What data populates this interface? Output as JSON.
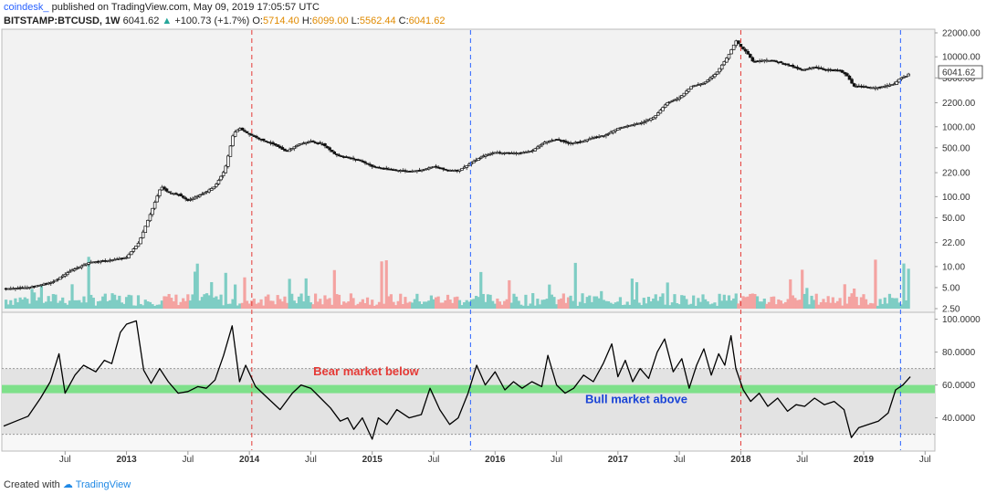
{
  "header": {
    "author": "coindesk_",
    "published": "published on TradingView.com, May 09, 2019 17:05:57 UTC",
    "symbol": "BITSTAMP:BTCUSD, 1W",
    "last": "6041.62",
    "change": "+100.73 (+1.7%)",
    "o_label": "O:",
    "o_value": "5714.40",
    "h_label": "H:",
    "h_value": "6099.00",
    "l_label": "L:",
    "l_value": "5562.44",
    "c_label": "C:",
    "c_value": "6041.62"
  },
  "footer": {
    "created_with": "Created with",
    "brand": "TradingView"
  },
  "colors": {
    "up": "#26a69a",
    "down": "#ef5350",
    "vol_up": "#7ecdc4",
    "vol_down": "#f4a3a1",
    "bear_line": "#e53935",
    "bull_line": "#2962ff",
    "band": "#7ee08a",
    "zone": "#e3e3e3",
    "bear_text": "#e53935",
    "bull_text": "#1a44d6"
  },
  "chart_data": [
    {
      "type": "candlestick",
      "title": "BITSTAMP:BTCUSD, 1W",
      "y_scale": "log",
      "y_ticks": [
        "2.50",
        "5.00",
        "10.00",
        "22.00",
        "50.00",
        "100.00",
        "220.00",
        "500.00",
        "1000.00",
        "2200.00",
        "5000.00",
        "10000.00",
        "22000.00"
      ],
      "y_tick_values": [
        2.5,
        5,
        10,
        22,
        50,
        100,
        220,
        500,
        1000,
        2200,
        5000,
        10000,
        22000
      ],
      "last_price_label": "6041.62",
      "last_price": 6041.62,
      "x_ticks": [
        "Jul",
        "2013",
        "Jul",
        "2014",
        "Jul",
        "2015",
        "Jul",
        "2016",
        "Jul",
        "2017",
        "Jul",
        "2018",
        "Jul",
        "2019",
        "Jul"
      ],
      "x_tick_bold": [
        false,
        true,
        false,
        true,
        false,
        true,
        false,
        true,
        false,
        true,
        false,
        true,
        false,
        true,
        false
      ],
      "x_tick_dates": [
        2012.5,
        2013.0,
        2013.5,
        2014.0,
        2014.5,
        2015.0,
        2015.5,
        2016.0,
        2016.5,
        2017.0,
        2017.5,
        2018.0,
        2018.5,
        2019.0,
        2019.5
      ],
      "x_range": [
        2012.0,
        2019.55
      ],
      "price_path": [
        {
          "t": 2012.0,
          "p": 4.8
        },
        {
          "t": 2012.2,
          "p": 5.0
        },
        {
          "t": 2012.4,
          "p": 6.0
        },
        {
          "t": 2012.55,
          "p": 8.8
        },
        {
          "t": 2012.7,
          "p": 11.5
        },
        {
          "t": 2012.85,
          "p": 12.2
        },
        {
          "t": 2013.0,
          "p": 13.5
        },
        {
          "t": 2013.1,
          "p": 22
        },
        {
          "t": 2013.2,
          "p": 60
        },
        {
          "t": 2013.28,
          "p": 140
        },
        {
          "t": 2013.34,
          "p": 115
        },
        {
          "t": 2013.42,
          "p": 108
        },
        {
          "t": 2013.5,
          "p": 88
        },
        {
          "t": 2013.62,
          "p": 110
        },
        {
          "t": 2013.72,
          "p": 140
        },
        {
          "t": 2013.8,
          "p": 240
        },
        {
          "t": 2013.87,
          "p": 800
        },
        {
          "t": 2013.92,
          "p": 950
        },
        {
          "t": 2014.0,
          "p": 780
        },
        {
          "t": 2014.1,
          "p": 650
        },
        {
          "t": 2014.2,
          "p": 560
        },
        {
          "t": 2014.3,
          "p": 440
        },
        {
          "t": 2014.4,
          "p": 560
        },
        {
          "t": 2014.5,
          "p": 620
        },
        {
          "t": 2014.6,
          "p": 560
        },
        {
          "t": 2014.7,
          "p": 400
        },
        {
          "t": 2014.8,
          "p": 360
        },
        {
          "t": 2014.9,
          "p": 330
        },
        {
          "t": 2015.0,
          "p": 270
        },
        {
          "t": 2015.1,
          "p": 250
        },
        {
          "t": 2015.2,
          "p": 240
        },
        {
          "t": 2015.3,
          "p": 230
        },
        {
          "t": 2015.4,
          "p": 240
        },
        {
          "t": 2015.5,
          "p": 270
        },
        {
          "t": 2015.6,
          "p": 240
        },
        {
          "t": 2015.7,
          "p": 235
        },
        {
          "t": 2015.8,
          "p": 300
        },
        {
          "t": 2015.9,
          "p": 380
        },
        {
          "t": 2016.0,
          "p": 430
        },
        {
          "t": 2016.1,
          "p": 420
        },
        {
          "t": 2016.2,
          "p": 420
        },
        {
          "t": 2016.3,
          "p": 450
        },
        {
          "t": 2016.4,
          "p": 600
        },
        {
          "t": 2016.5,
          "p": 660
        },
        {
          "t": 2016.6,
          "p": 580
        },
        {
          "t": 2016.7,
          "p": 610
        },
        {
          "t": 2016.8,
          "p": 700
        },
        {
          "t": 2016.9,
          "p": 760
        },
        {
          "t": 2017.0,
          "p": 950
        },
        {
          "t": 2017.1,
          "p": 1050
        },
        {
          "t": 2017.2,
          "p": 1150
        },
        {
          "t": 2017.3,
          "p": 1400
        },
        {
          "t": 2017.4,
          "p": 2200
        },
        {
          "t": 2017.5,
          "p": 2600
        },
        {
          "t": 2017.6,
          "p": 3800
        },
        {
          "t": 2017.7,
          "p": 4200
        },
        {
          "t": 2017.8,
          "p": 5800
        },
        {
          "t": 2017.9,
          "p": 10500
        },
        {
          "t": 2017.96,
          "p": 17000
        },
        {
          "t": 2018.0,
          "p": 14000
        },
        {
          "t": 2018.05,
          "p": 11500
        },
        {
          "t": 2018.1,
          "p": 8500
        },
        {
          "t": 2018.2,
          "p": 9000
        },
        {
          "t": 2018.3,
          "p": 8500
        },
        {
          "t": 2018.4,
          "p": 7500
        },
        {
          "t": 2018.5,
          "p": 6400
        },
        {
          "t": 2018.6,
          "p": 7200
        },
        {
          "t": 2018.7,
          "p": 6500
        },
        {
          "t": 2018.8,
          "p": 6400
        },
        {
          "t": 2018.86,
          "p": 5500
        },
        {
          "t": 2018.92,
          "p": 3800
        },
        {
          "t": 2019.0,
          "p": 3700
        },
        {
          "t": 2019.1,
          "p": 3600
        },
        {
          "t": 2019.2,
          "p": 3900
        },
        {
          "t": 2019.25,
          "p": 4100
        },
        {
          "t": 2019.3,
          "p": 5000
        },
        {
          "t": 2019.35,
          "p": 5300
        },
        {
          "t": 2019.38,
          "p": 6041.62
        }
      ],
      "markers": [
        {
          "t": 2014.02,
          "kind": "bear"
        },
        {
          "t": 2015.8,
          "kind": "bull"
        },
        {
          "t": 2018.0,
          "kind": "bear"
        },
        {
          "t": 2019.3,
          "kind": "bull"
        }
      ]
    },
    {
      "type": "line",
      "title": "",
      "y_ticks": [
        "40.0000",
        "60.0000",
        "80.0000",
        "100.0000"
      ],
      "y_tick_values": [
        40,
        60,
        80,
        100
      ],
      "ylim": [
        22,
        102
      ],
      "upper_level": 70,
      "lower_level": 30,
      "band": [
        55,
        60
      ],
      "annotations": [
        {
          "text": "Bear market below",
          "t": 2014.95,
          "v": 66,
          "color_key": "bear_text"
        },
        {
          "text": "Bull market above",
          "t": 2017.15,
          "v": 49,
          "color_key": "bull_text"
        }
      ],
      "values": [
        {
          "t": 2012.0,
          "v": 35
        },
        {
          "t": 2012.1,
          "v": 38
        },
        {
          "t": 2012.2,
          "v": 41
        },
        {
          "t": 2012.3,
          "v": 52
        },
        {
          "t": 2012.38,
          "v": 62
        },
        {
          "t": 2012.45,
          "v": 79
        },
        {
          "t": 2012.5,
          "v": 55
        },
        {
          "t": 2012.58,
          "v": 66
        },
        {
          "t": 2012.65,
          "v": 72
        },
        {
          "t": 2012.75,
          "v": 68
        },
        {
          "t": 2012.82,
          "v": 75
        },
        {
          "t": 2012.88,
          "v": 73
        },
        {
          "t": 2012.95,
          "v": 92
        },
        {
          "t": 2013.0,
          "v": 97
        },
        {
          "t": 2013.08,
          "v": 99
        },
        {
          "t": 2013.14,
          "v": 69
        },
        {
          "t": 2013.2,
          "v": 61
        },
        {
          "t": 2013.27,
          "v": 70
        },
        {
          "t": 2013.34,
          "v": 62
        },
        {
          "t": 2013.42,
          "v": 55
        },
        {
          "t": 2013.5,
          "v": 56
        },
        {
          "t": 2013.58,
          "v": 59
        },
        {
          "t": 2013.65,
          "v": 58
        },
        {
          "t": 2013.72,
          "v": 63
        },
        {
          "t": 2013.79,
          "v": 78
        },
        {
          "t": 2013.86,
          "v": 96
        },
        {
          "t": 2013.92,
          "v": 62
        },
        {
          "t": 2013.97,
          "v": 72
        },
        {
          "t": 2014.05,
          "v": 59
        },
        {
          "t": 2014.15,
          "v": 52
        },
        {
          "t": 2014.25,
          "v": 45
        },
        {
          "t": 2014.35,
          "v": 55
        },
        {
          "t": 2014.42,
          "v": 60
        },
        {
          "t": 2014.5,
          "v": 58
        },
        {
          "t": 2014.58,
          "v": 52
        },
        {
          "t": 2014.66,
          "v": 46
        },
        {
          "t": 2014.74,
          "v": 38
        },
        {
          "t": 2014.8,
          "v": 40
        },
        {
          "t": 2014.85,
          "v": 33
        },
        {
          "t": 2014.92,
          "v": 40
        },
        {
          "t": 2015.0,
          "v": 27
        },
        {
          "t": 2015.05,
          "v": 40
        },
        {
          "t": 2015.12,
          "v": 36
        },
        {
          "t": 2015.2,
          "v": 45
        },
        {
          "t": 2015.3,
          "v": 40
        },
        {
          "t": 2015.4,
          "v": 42
        },
        {
          "t": 2015.47,
          "v": 58
        },
        {
          "t": 2015.55,
          "v": 45
        },
        {
          "t": 2015.63,
          "v": 36
        },
        {
          "t": 2015.7,
          "v": 40
        },
        {
          "t": 2015.78,
          "v": 55
        },
        {
          "t": 2015.85,
          "v": 72
        },
        {
          "t": 2015.92,
          "v": 60
        },
        {
          "t": 2016.0,
          "v": 68
        },
        {
          "t": 2016.08,
          "v": 57
        },
        {
          "t": 2016.15,
          "v": 62
        },
        {
          "t": 2016.22,
          "v": 58
        },
        {
          "t": 2016.3,
          "v": 62
        },
        {
          "t": 2016.38,
          "v": 59
        },
        {
          "t": 2016.43,
          "v": 78
        },
        {
          "t": 2016.5,
          "v": 60
        },
        {
          "t": 2016.57,
          "v": 55
        },
        {
          "t": 2016.64,
          "v": 58
        },
        {
          "t": 2016.72,
          "v": 66
        },
        {
          "t": 2016.8,
          "v": 62
        },
        {
          "t": 2016.88,
          "v": 73
        },
        {
          "t": 2016.95,
          "v": 85
        },
        {
          "t": 2017.0,
          "v": 65
        },
        {
          "t": 2017.06,
          "v": 75
        },
        {
          "t": 2017.12,
          "v": 62
        },
        {
          "t": 2017.18,
          "v": 70
        },
        {
          "t": 2017.25,
          "v": 64
        },
        {
          "t": 2017.32,
          "v": 80
        },
        {
          "t": 2017.38,
          "v": 88
        },
        {
          "t": 2017.45,
          "v": 68
        },
        {
          "t": 2017.52,
          "v": 76
        },
        {
          "t": 2017.58,
          "v": 58
        },
        {
          "t": 2017.64,
          "v": 72
        },
        {
          "t": 2017.7,
          "v": 82
        },
        {
          "t": 2017.76,
          "v": 66
        },
        {
          "t": 2017.82,
          "v": 79
        },
        {
          "t": 2017.87,
          "v": 72
        },
        {
          "t": 2017.92,
          "v": 90
        },
        {
          "t": 2017.96,
          "v": 70
        },
        {
          "t": 2018.02,
          "v": 57
        },
        {
          "t": 2018.08,
          "v": 50
        },
        {
          "t": 2018.15,
          "v": 55
        },
        {
          "t": 2018.22,
          "v": 47
        },
        {
          "t": 2018.3,
          "v": 52
        },
        {
          "t": 2018.38,
          "v": 44
        },
        {
          "t": 2018.45,
          "v": 48
        },
        {
          "t": 2018.52,
          "v": 47
        },
        {
          "t": 2018.6,
          "v": 52
        },
        {
          "t": 2018.68,
          "v": 48
        },
        {
          "t": 2018.76,
          "v": 50
        },
        {
          "t": 2018.84,
          "v": 45
        },
        {
          "t": 2018.9,
          "v": 28
        },
        {
          "t": 2018.96,
          "v": 34
        },
        {
          "t": 2019.04,
          "v": 36
        },
        {
          "t": 2019.12,
          "v": 38
        },
        {
          "t": 2019.2,
          "v": 43
        },
        {
          "t": 2019.26,
          "v": 57
        },
        {
          "t": 2019.32,
          "v": 60
        },
        {
          "t": 2019.38,
          "v": 65
        }
      ]
    }
  ]
}
